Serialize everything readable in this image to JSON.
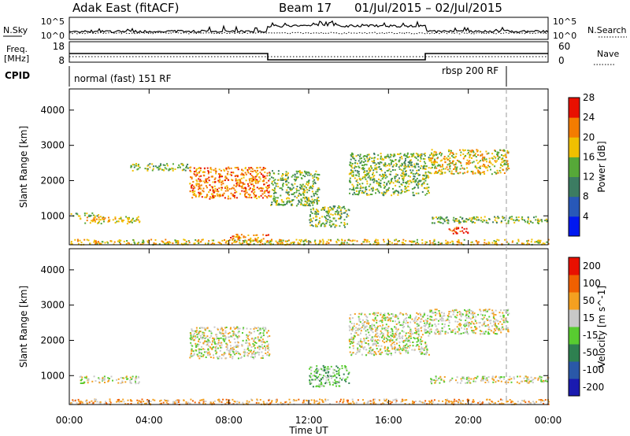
{
  "header": {
    "radar": "Adak East (fitACF)",
    "beam": "Beam 17",
    "dates": "01/Jul/2015 – 02/Jul/2015"
  },
  "panels": {
    "noise": {
      "left_label": "N.Sky",
      "right_label": "N.Search",
      "left_ticks": [
        "10^5",
        "10^0"
      ],
      "right_ticks": [
        "10^5",
        "10^0"
      ]
    },
    "freq": {
      "left_label": "Freq.",
      "left_unit": "[MHz]",
      "right_label": "Nave",
      "left_ticks": [
        "18",
        "8"
      ],
      "right_ticks": [
        "60",
        "0"
      ]
    },
    "cpid": {
      "label": "CPID",
      "modes": [
        "normal (fast) 151 RF",
        "rbsp 200 RF"
      ]
    }
  },
  "axes": {
    "ylabel": "Slant Range [km]",
    "xlabel": "Time UT",
    "y_ticks": [
      "1000",
      "2000",
      "3000",
      "4000"
    ],
    "x_ticks": [
      "00:00",
      "04:00",
      "08:00",
      "12:00",
      "16:00",
      "20:00",
      "00:00"
    ]
  },
  "chart_data": [
    {
      "type": "heatmap",
      "title": "",
      "xlabel": "Time UT",
      "ylabel": "Slant Range [km]",
      "xlim": [
        0,
        24
      ],
      "ylim": [
        180,
        4600
      ],
      "colorbar": {
        "label": "Power [dB]",
        "ticks": [
          "4",
          "8",
          "12",
          "16",
          "20",
          "24",
          "28"
        ],
        "colors": [
          "#0018f0",
          "#2858b8",
          "#3c7c62",
          "#56a838",
          "#f0c000",
          "#f47c00",
          "#e81000"
        ]
      },
      "features": [
        {
          "t": [
            0.5,
            3.5
          ],
          "r": [
            800,
            1000
          ],
          "level": 4
        },
        {
          "t": [
            0,
            1.5
          ],
          "r": [
            1000,
            1100
          ],
          "level": 3
        },
        {
          "t": [
            6,
            10
          ],
          "r": [
            1500,
            2400
          ],
          "level": 5
        },
        {
          "t": [
            3,
            6
          ],
          "r": [
            2300,
            2500
          ],
          "level": 3
        },
        {
          "t": [
            10,
            12.5
          ],
          "r": [
            1300,
            2300
          ],
          "level": 3
        },
        {
          "t": [
            12,
            14
          ],
          "r": [
            700,
            1300
          ],
          "level": 3
        },
        {
          "t": [
            14,
            18
          ],
          "r": [
            1600,
            2800
          ],
          "level": 3
        },
        {
          "t": [
            18,
            22
          ],
          "r": [
            2200,
            2900
          ],
          "level": 4
        },
        {
          "t": [
            18,
            24
          ],
          "r": [
            800,
            1000
          ],
          "level": 3
        },
        {
          "t": [
            19,
            20
          ],
          "r": [
            500,
            700
          ],
          "level": 6
        },
        {
          "t": [
            8,
            10
          ],
          "r": [
            300,
            500
          ],
          "level": 5
        },
        {
          "t": [
            0,
            24
          ],
          "r": [
            200,
            350
          ],
          "level": 4
        }
      ]
    },
    {
      "type": "heatmap",
      "title": "",
      "xlabel": "Time UT",
      "ylabel": "Slant Range [km]",
      "xlim": [
        0,
        24
      ],
      "ylim": [
        180,
        4600
      ],
      "colorbar": {
        "label": "Velocity [m s^-1]",
        "ticks": [
          "200",
          "100",
          "50",
          "15",
          "-15",
          "-50",
          "-100",
          "-200"
        ],
        "colors": [
          "#1a1ab0",
          "#2a58a8",
          "#2e8050",
          "#58cc30",
          "#c8c8c8",
          "#f4a020",
          "#f06000",
          "#e81000"
        ]
      },
      "features": [
        {
          "t": [
            0.5,
            3.5
          ],
          "r": [
            800,
            1000
          ],
          "level": 4
        },
        {
          "t": [
            6,
            10
          ],
          "r": [
            1500,
            2400
          ],
          "level": 4
        },
        {
          "t": [
            12,
            14
          ],
          "r": [
            700,
            1300
          ],
          "level": 3
        },
        {
          "t": [
            14,
            18
          ],
          "r": [
            1600,
            2800
          ],
          "level": 4
        },
        {
          "t": [
            18,
            22
          ],
          "r": [
            2200,
            2900
          ],
          "level": 4
        },
        {
          "t": [
            18,
            24
          ],
          "r": [
            800,
            1000
          ],
          "level": 4
        },
        {
          "t": [
            0,
            24
          ],
          "r": [
            200,
            350
          ],
          "level": 5
        }
      ]
    }
  ]
}
